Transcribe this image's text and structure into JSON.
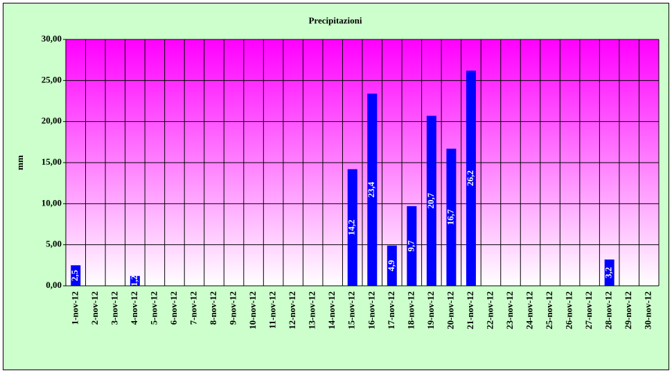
{
  "chart_data": {
    "type": "bar",
    "title": "Precipitazioni",
    "y_label": "mm",
    "categories": [
      "1-nov-12",
      "2-nov-12",
      "3-nov-12",
      "4-nov-12",
      "5-nov-12",
      "6-nov-12",
      "7-nov-12",
      "8-nov-12",
      "9-nov-12",
      "10-nov-12",
      "11-nov-12",
      "12-nov-12",
      "13-nov-12",
      "14-nov-12",
      "15-nov-12",
      "16-nov-12",
      "17-nov-12",
      "18-nov-12",
      "19-nov-12",
      "20-nov-12",
      "21-nov-12",
      "22-nov-12",
      "23-nov-12",
      "24-nov-12",
      "25-nov-12",
      "26-nov-12",
      "27-nov-12",
      "28-nov-12",
      "29-nov-12",
      "30-nov-12"
    ],
    "values": [
      2.5,
      null,
      null,
      1.2,
      null,
      null,
      null,
      null,
      null,
      null,
      null,
      null,
      null,
      null,
      14.2,
      23.4,
      4.9,
      9.7,
      20.7,
      16.7,
      26.2,
      null,
      null,
      null,
      null,
      null,
      null,
      3.2,
      null,
      null
    ],
    "value_labels": [
      "2,5",
      null,
      null,
      "1,2",
      null,
      null,
      null,
      null,
      null,
      null,
      null,
      null,
      null,
      null,
      "14,2",
      "23,4",
      "4,9",
      "9,7",
      "20,7",
      "16,7",
      "26,2",
      null,
      null,
      null,
      null,
      null,
      null,
      "3,2",
      null,
      null
    ],
    "color": "#0000ff",
    "ylim": [
      0,
      30
    ],
    "yticks": [
      {
        "value": 0,
        "label": "0,00"
      },
      {
        "value": 5,
        "label": "5,00"
      },
      {
        "value": 10,
        "label": "10,00"
      },
      {
        "value": 15,
        "label": "15,00"
      },
      {
        "value": 20,
        "label": "20,00"
      },
      {
        "value": 25,
        "label": "25,00"
      },
      {
        "value": 30,
        "label": "30,00"
      }
    ],
    "grid": true
  }
}
